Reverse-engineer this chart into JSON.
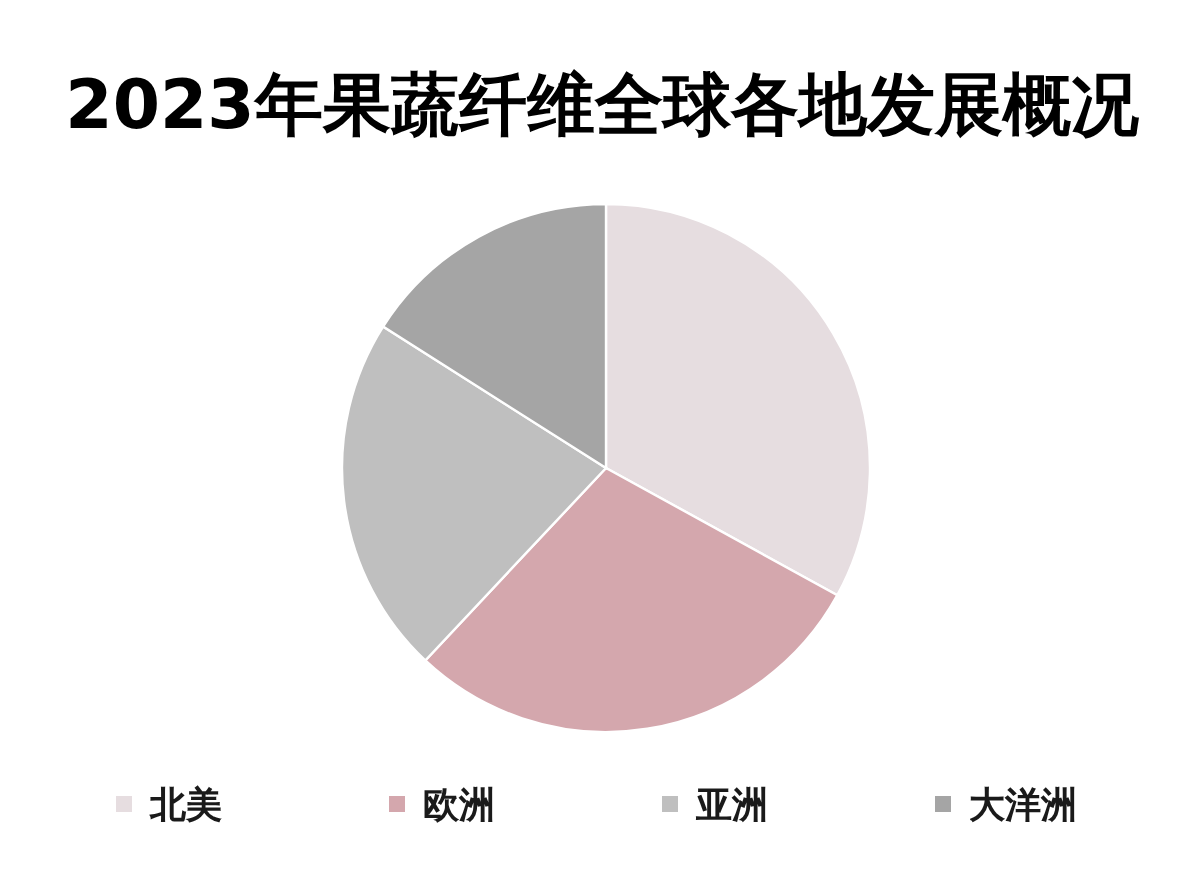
{
  "chart_data": {
    "type": "pie",
    "title": "2023年果蔬纤维全球各地发展概况",
    "categories": [
      "北美",
      "欧洲",
      "亚洲",
      "大洋洲"
    ],
    "values": [
      33,
      29,
      22,
      16
    ],
    "colors": [
      "#e6dde0",
      "#d4a7ad",
      "#bfbfbf",
      "#a5a5a5"
    ],
    "legend": "bottom"
  }
}
